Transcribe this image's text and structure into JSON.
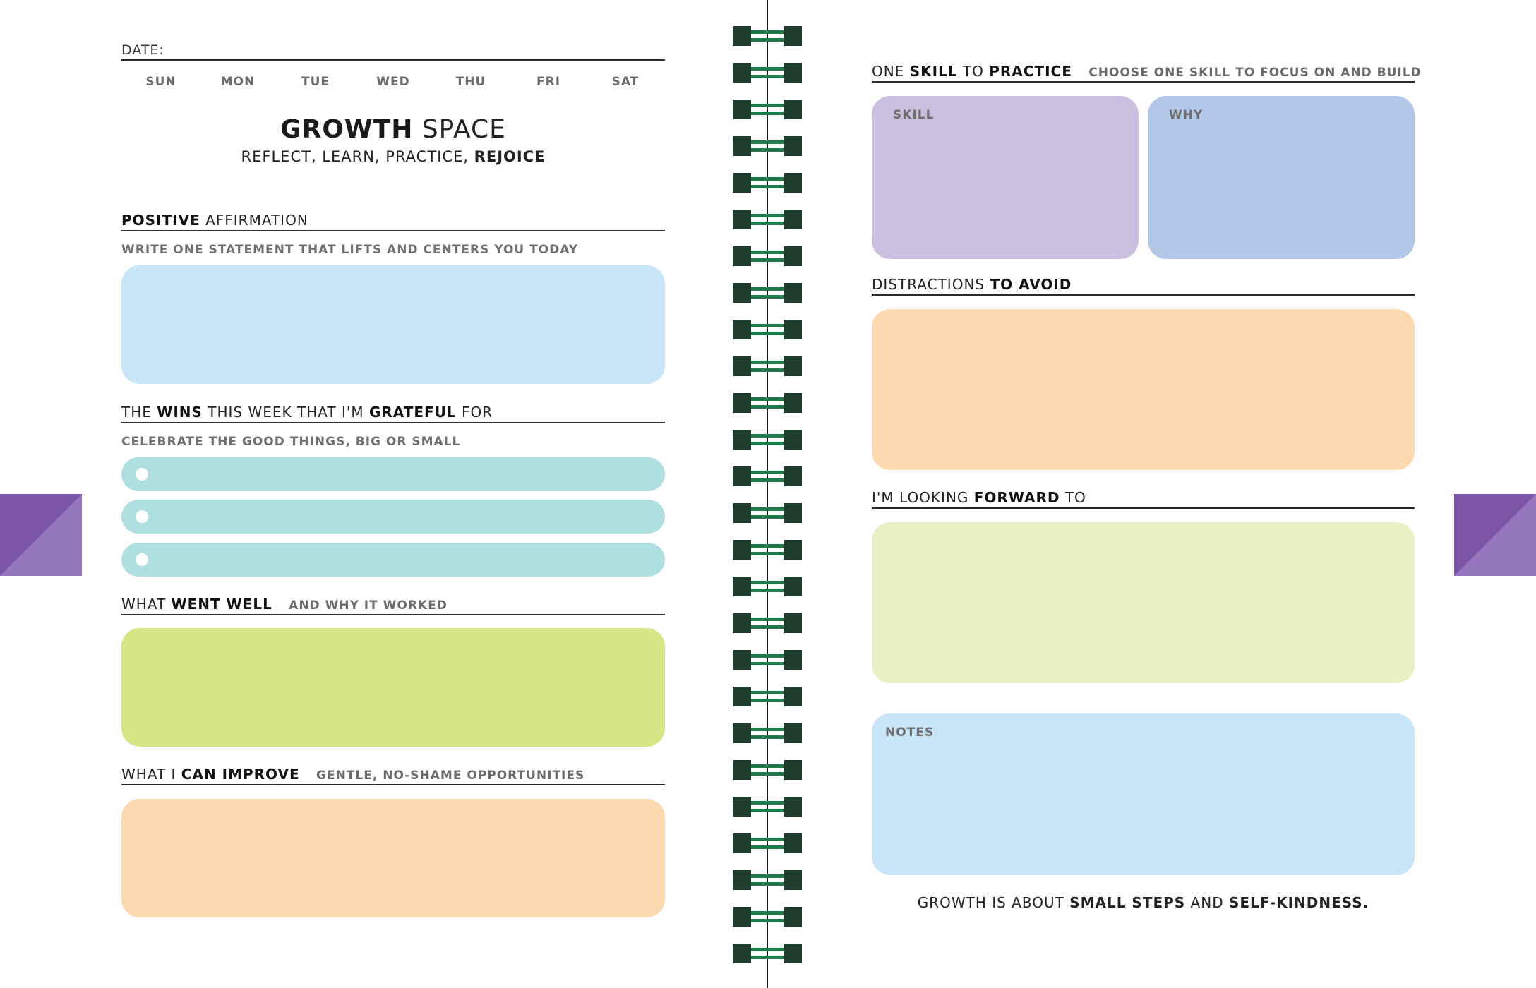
{
  "left_page": {
    "date_label": "DATE:",
    "days": [
      "SUN",
      "MON",
      "TUE",
      "WED",
      "THU",
      "FRI",
      "SAT"
    ],
    "title_bold": "GROWTH",
    "title_light": "SPACE",
    "subtitle_light": "REFLECT, LEARN, PRACTICE,",
    "subtitle_bold": "REJOICE",
    "affirmation": {
      "title_bold": "POSITIVE",
      "title_rest": "AFFIRMATION",
      "hint": "WRITE ONE STATEMENT THAT LIFTS AND CENTERS YOU TODAY"
    },
    "wins": {
      "t1": "THE",
      "t2": "WINS",
      "t3": "THIS WEEK THAT I'M",
      "t4": "GRATEFUL",
      "t5": "FOR",
      "hint": "CELEBRATE THE GOOD THINGS, BIG OR SMALL"
    },
    "went_well": {
      "t1": "WHAT",
      "t2": "WENT WELL",
      "note": "AND WHY IT WORKED"
    },
    "improve": {
      "t1": "WHAT I",
      "t2": "CAN IMPROVE",
      "note": "GENTLE, NO-SHAME OPPORTUNITIES"
    }
  },
  "right_page": {
    "skill": {
      "t1": "ONE",
      "t2": "SKILL",
      "t3": "TO",
      "t4": "PRACTICE",
      "note": "CHOOSE ONE SKILL TO FOCUS ON AND BUILD",
      "skill_label": "SKILL",
      "why_label": "WHY"
    },
    "distractions": {
      "t1": "DISTRACTIONS",
      "t2": "TO AVOID"
    },
    "forward": {
      "t1": "I'M LOOKING",
      "t2": "FORWARD",
      "t3": "TO"
    },
    "notes_label": "NOTES",
    "footer": {
      "f1": "GROWTH IS ABOUT",
      "f2": "SMALL STEPS",
      "f3": "AND",
      "f4": "SELF-KINDNESS."
    }
  },
  "colors": {
    "light_blue": "#c8e6f8",
    "teal": "#b0dfe2",
    "lime": "#d5e687",
    "peach": "#fdd9b2",
    "lavender": "#cbbfdf",
    "periwinkle": "#b3c8e8",
    "pale_green": "#e8f0c4",
    "tab_purple": "#7b55a8",
    "coil_green": "#1f3d2c"
  }
}
